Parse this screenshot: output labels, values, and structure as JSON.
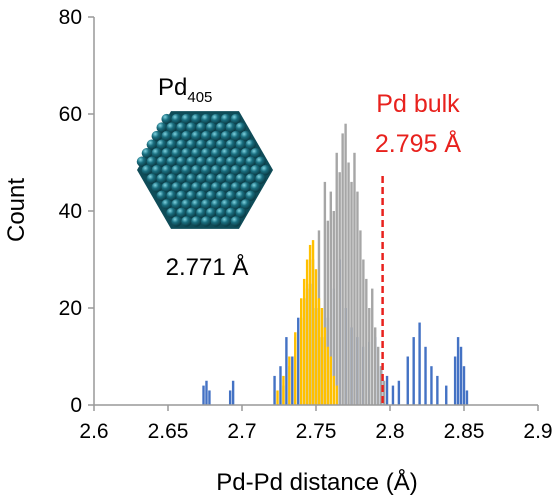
{
  "chart_data": {
    "type": "histogram",
    "xlabel": "Pd-Pd distance (Å)",
    "ylabel": "Count",
    "xlim": [
      2.6,
      2.9
    ],
    "ylim": [
      0,
      80
    ],
    "xticks": [
      "2.6",
      "2.65",
      "2.7",
      "2.75",
      "2.8",
      "2.85",
      "2.9"
    ],
    "yticks": [
      "0",
      "20",
      "40",
      "60",
      "80"
    ],
    "grid": false,
    "legend": "none",
    "series": [
      {
        "color": "#4472c4",
        "points": [
          [
            2.674,
            4
          ],
          [
            2.676,
            5
          ],
          [
            2.678,
            3
          ],
          [
            2.692,
            3
          ],
          [
            2.694,
            5
          ],
          [
            2.722,
            6
          ],
          [
            2.726,
            8
          ],
          [
            2.73,
            14
          ],
          [
            2.734,
            10
          ],
          [
            2.738,
            18
          ],
          [
            2.742,
            22
          ],
          [
            2.746,
            25
          ],
          [
            2.75,
            20
          ],
          [
            2.754,
            14
          ],
          [
            2.758,
            18
          ],
          [
            2.762,
            24
          ],
          [
            2.766,
            30
          ],
          [
            2.77,
            20
          ],
          [
            2.774,
            16
          ],
          [
            2.778,
            14
          ],
          [
            2.782,
            12
          ],
          [
            2.786,
            13
          ],
          [
            2.79,
            14
          ],
          [
            2.794,
            8
          ],
          [
            2.798,
            6
          ],
          [
            2.802,
            4
          ],
          [
            2.806,
            5
          ],
          [
            2.812,
            10
          ],
          [
            2.816,
            14
          ],
          [
            2.82,
            17
          ],
          [
            2.824,
            12
          ],
          [
            2.828,
            8
          ],
          [
            2.832,
            6
          ],
          [
            2.838,
            4
          ],
          [
            2.844,
            10
          ],
          [
            2.846,
            14
          ],
          [
            2.848,
            12
          ],
          [
            2.85,
            8
          ],
          [
            2.852,
            3
          ]
        ]
      },
      {
        "color": "#a6a6a6",
        "points": [
          [
            2.728,
            4
          ],
          [
            2.732,
            8
          ],
          [
            2.736,
            14
          ],
          [
            2.74,
            18
          ],
          [
            2.744,
            24
          ],
          [
            2.748,
            30
          ],
          [
            2.752,
            36
          ],
          [
            2.756,
            46
          ],
          [
            2.758,
            38
          ],
          [
            2.76,
            44
          ],
          [
            2.762,
            40
          ],
          [
            2.764,
            52
          ],
          [
            2.766,
            48
          ],
          [
            2.768,
            56
          ],
          [
            2.77,
            58
          ],
          [
            2.772,
            50
          ],
          [
            2.774,
            46
          ],
          [
            2.776,
            52
          ],
          [
            2.778,
            44
          ],
          [
            2.78,
            36
          ],
          [
            2.782,
            30
          ],
          [
            2.784,
            26
          ],
          [
            2.786,
            20
          ],
          [
            2.788,
            24
          ],
          [
            2.79,
            16
          ],
          [
            2.792,
            12
          ],
          [
            2.794,
            8
          ],
          [
            2.796,
            5
          ]
        ]
      },
      {
        "color": "#ffc000",
        "points": [
          [
            2.724,
            3
          ],
          [
            2.728,
            6
          ],
          [
            2.732,
            10
          ],
          [
            2.736,
            15
          ],
          [
            2.74,
            22
          ],
          [
            2.742,
            26
          ],
          [
            2.744,
            30
          ],
          [
            2.746,
            33
          ],
          [
            2.748,
            34
          ],
          [
            2.75,
            28
          ],
          [
            2.752,
            22
          ],
          [
            2.754,
            20
          ],
          [
            2.756,
            16
          ],
          [
            2.758,
            12
          ],
          [
            2.76,
            10
          ],
          [
            2.762,
            6
          ],
          [
            2.764,
            4
          ]
        ]
      }
    ],
    "annotations": {
      "cluster_label": "Pd",
      "cluster_subscript": "405",
      "cluster_distance": "2.771 Å",
      "bulk_label": "Pd bulk",
      "bulk_distance": "2.795 Å",
      "bulk_x": 2.795,
      "bulk_color": "#e8211d"
    },
    "inset_color": "#1a6f80"
  }
}
